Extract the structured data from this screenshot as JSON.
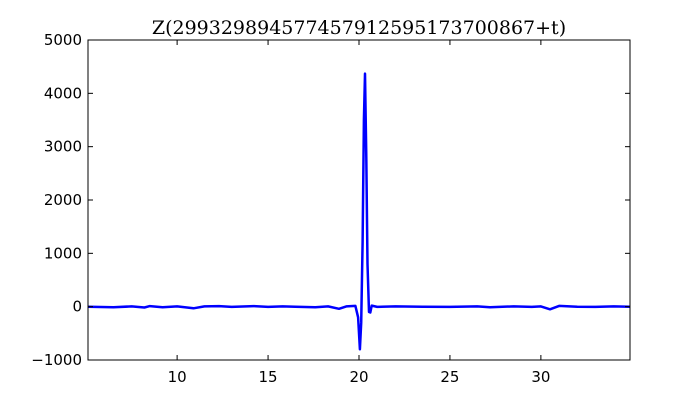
{
  "chart_data": {
    "type": "line",
    "title": "Z(299329894577457912595173700867+t)",
    "xlabel": "",
    "ylabel": "",
    "xlim": [
      5.1,
      34.9
    ],
    "ylim": [
      -1000,
      5000
    ],
    "x_ticks": [
      "10",
      "15",
      "20",
      "25",
      "30"
    ],
    "x_tick_values": [
      10,
      15,
      20,
      25,
      30
    ],
    "y_ticks": [
      "−1000",
      "0",
      "1000",
      "2000",
      "3000",
      "4000",
      "5000"
    ],
    "y_tick_values": [
      -1000,
      0,
      1000,
      2000,
      3000,
      4000,
      5000
    ],
    "grid": false,
    "series": [
      {
        "color": "#0000ff",
        "x": [
          5.1,
          6.5,
          7.5,
          8.2,
          8.5,
          9.2,
          10.0,
          10.9,
          11.5,
          12.3,
          13.0,
          14.2,
          15.0,
          15.8,
          16.5,
          17.6,
          18.3,
          18.9,
          19.3,
          19.8,
          19.95,
          20.05,
          20.12,
          20.2,
          20.27,
          20.33,
          20.4,
          20.47,
          20.55,
          20.62,
          20.7,
          21.0,
          22.0,
          23.5,
          25.0,
          26.5,
          27.2,
          28.5,
          29.5,
          30.0,
          30.5,
          31.0,
          32.0,
          33.0,
          34.0,
          34.9
        ],
        "y": [
          0,
          -10,
          5,
          -15,
          10,
          -10,
          5,
          -30,
          5,
          10,
          -5,
          10,
          -5,
          5,
          0,
          -10,
          5,
          -40,
          5,
          15,
          -200,
          -800,
          -300,
          1200,
          3500,
          4370,
          2800,
          800,
          -100,
          -110,
          20,
          -5,
          5,
          0,
          -5,
          5,
          -10,
          5,
          -5,
          5,
          -50,
          15,
          0,
          -5,
          5,
          0
        ]
      }
    ]
  }
}
